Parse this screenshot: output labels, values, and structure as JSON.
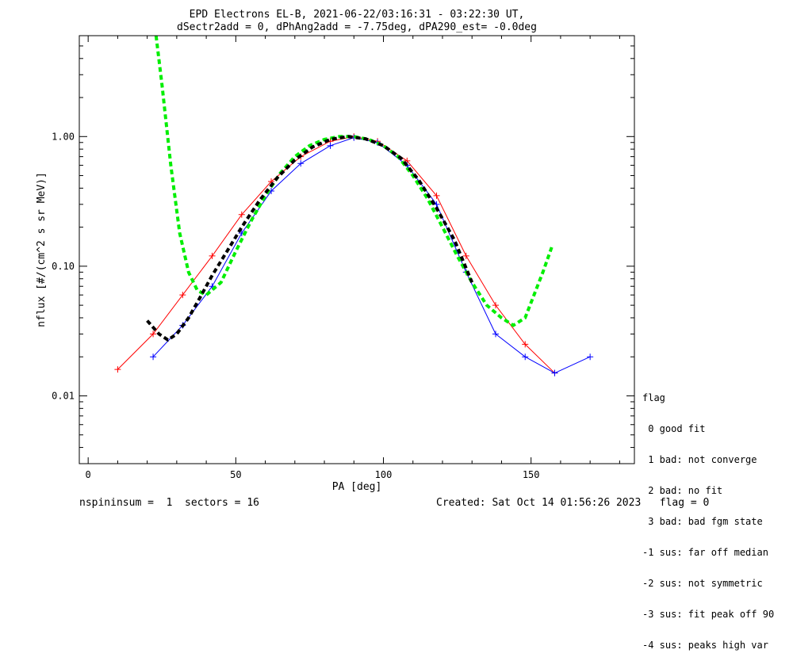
{
  "chart_data": {
    "type": "line",
    "title": "EPD Electrons EL-B, 2021-06-22/03:16:31 - 03:22:30 UT,",
    "subtitle": "dSectr2add = 0, dPhAng2add = -7.75deg, dPA290_est=  -0.0deg",
    "xlabel": "PA [deg]",
    "ylabel": "nflux [#/(cm^2 s sr MeV)]",
    "xlim": [
      -3,
      185
    ],
    "ylim": [
      0.003,
      6.0
    ],
    "yscale": "log",
    "grid": false,
    "x_ticks": [
      0,
      50,
      100,
      150
    ],
    "x_tick_labels": [
      "0",
      "50",
      "100",
      "150"
    ],
    "y_ticks": [
      0.01,
      0.1,
      1.0
    ],
    "y_tick_labels": [
      "0.01",
      "0.10",
      "1.00"
    ],
    "series": [
      {
        "color": "#ff0000",
        "marker": "plus",
        "style": "solid",
        "x": [
          10,
          22,
          32,
          42,
          52,
          62,
          72,
          82,
          90,
          98,
          108,
          118,
          128,
          138,
          148,
          158
        ],
        "values": [
          0.016,
          0.03,
          0.06,
          0.12,
          0.25,
          0.45,
          0.7,
          0.92,
          1.0,
          0.92,
          0.65,
          0.35,
          0.12,
          0.05,
          0.025,
          0.015
        ]
      },
      {
        "color": "#0000ff",
        "marker": "plus",
        "style": "solid",
        "x": [
          22,
          32,
          42,
          52,
          62,
          72,
          82,
          90,
          98,
          108,
          118,
          128,
          138,
          148,
          158,
          170
        ],
        "values": [
          0.02,
          0.035,
          0.07,
          0.18,
          0.38,
          0.62,
          0.85,
          0.98,
          0.9,
          0.6,
          0.3,
          0.09,
          0.03,
          0.02,
          0.015,
          0.02
        ]
      },
      {
        "color": "#00ee00",
        "style": "dashed",
        "x": [
          23,
          25,
          28,
          31,
          34,
          37,
          40,
          45,
          50,
          55,
          60,
          65,
          70,
          75,
          80,
          85,
          90,
          95,
          100,
          105,
          110,
          115,
          120,
          125,
          130,
          135,
          140,
          144,
          148,
          151,
          154,
          157
        ],
        "values": [
          6.0,
          2.5,
          0.6,
          0.18,
          0.09,
          0.065,
          0.06,
          0.075,
          0.13,
          0.22,
          0.35,
          0.52,
          0.7,
          0.85,
          0.95,
          1.0,
          1.0,
          0.95,
          0.85,
          0.7,
          0.5,
          0.33,
          0.2,
          0.12,
          0.075,
          0.05,
          0.04,
          0.035,
          0.04,
          0.06,
          0.09,
          0.14
        ]
      },
      {
        "color": "#000000",
        "style": "dashed",
        "x": [
          20,
          24,
          27,
          30,
          34,
          38,
          42,
          47,
          52,
          58,
          64,
          70,
          76,
          82,
          88,
          94,
          100,
          106,
          112,
          118,
          124,
          130
        ],
        "values": [
          0.038,
          0.03,
          0.027,
          0.03,
          0.04,
          0.058,
          0.085,
          0.13,
          0.2,
          0.32,
          0.48,
          0.66,
          0.83,
          0.95,
          1.0,
          0.96,
          0.85,
          0.68,
          0.46,
          0.28,
          0.16,
          0.075
        ]
      }
    ]
  },
  "legend": {
    "title": "flag",
    "items": [
      " 0 good fit",
      " 1 bad: not converge",
      " 2 bad: no fit",
      " 3 bad: bad fgm state",
      "-1 sus: far off median",
      "-2 sus: not symmetric",
      "-3 sus: fit peak off 90",
      "-4 sus: peaks high var"
    ]
  },
  "footer": {
    "left": "nspininsum =  1  sectors = 16",
    "right": "Created: Sat Oct 14 01:56:26 2023   flag = 0"
  }
}
